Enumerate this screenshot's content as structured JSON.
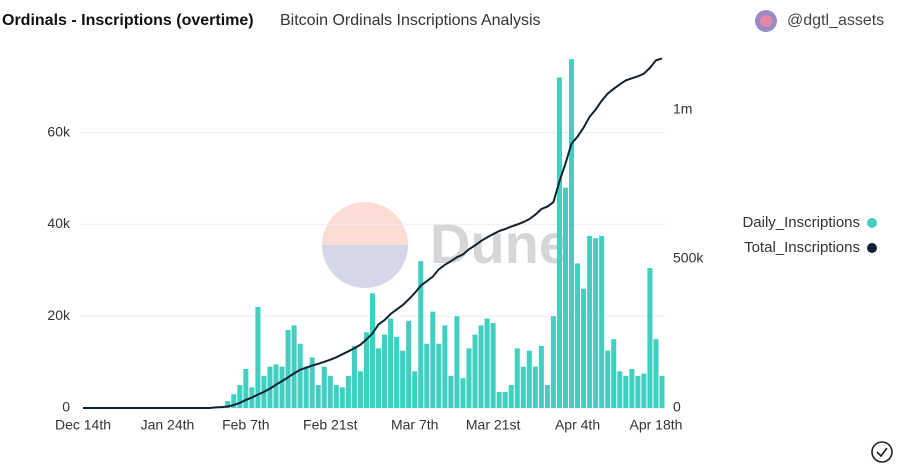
{
  "chart_data": {
    "type": "bar_line",
    "title": "Ordinals - Inscriptions (overtime)",
    "subtitle": "Bitcoin Ordinals Inscriptions Analysis",
    "author": "@dgtl_assets",
    "watermark": "Dune",
    "categories": [
      "Dec 14th",
      null,
      null,
      null,
      null,
      null,
      null,
      null,
      null,
      null,
      null,
      null,
      null,
      null,
      "Jan 24th",
      null,
      null,
      null,
      null,
      null,
      null,
      null,
      null,
      null,
      null,
      null,
      null,
      "Feb 7th",
      null,
      null,
      null,
      null,
      null,
      null,
      null,
      null,
      null,
      null,
      null,
      null,
      null,
      "Feb 21st",
      null,
      null,
      null,
      null,
      null,
      null,
      null,
      null,
      null,
      null,
      null,
      null,
      null,
      "Mar 7th",
      null,
      null,
      null,
      null,
      null,
      null,
      null,
      null,
      null,
      null,
      null,
      null,
      "Mar 21st",
      null,
      null,
      null,
      null,
      null,
      null,
      null,
      null,
      null,
      null,
      null,
      null,
      null,
      "Apr 4th",
      null,
      null,
      null,
      null,
      null,
      null,
      null,
      null,
      null,
      null,
      null,
      null,
      "Apr 18th",
      null
    ],
    "series": [
      {
        "name": "Daily_Inscriptions",
        "color": "#40cfc0",
        "kind": "bar",
        "values": [
          0,
          0,
          0,
          0,
          0,
          0,
          0,
          0,
          0,
          0,
          0,
          0,
          0,
          0,
          0,
          0,
          0,
          0,
          0,
          0,
          0,
          0,
          200,
          400,
          1500,
          3000,
          5000,
          8500,
          4500,
          22000,
          7000,
          9000,
          9500,
          9000,
          17000,
          18000,
          14000,
          9000,
          11000,
          5000,
          9000,
          7000,
          5000,
          4500,
          7000,
          13500,
          8000,
          16500,
          25000,
          13000,
          16000,
          19500,
          15500,
          12500,
          19000,
          8000,
          32000,
          14000,
          21000,
          14000,
          18000,
          7000,
          20000,
          6500,
          13000,
          16000,
          18000,
          19500,
          18500,
          3500,
          3500,
          5000,
          13000,
          9000,
          12500,
          9000,
          13500,
          5000,
          20000,
          72000,
          48000,
          76000,
          31500,
          26000,
          37500,
          37000,
          37500,
          12500,
          15000,
          8000,
          7000,
          8500,
          7000,
          7500,
          30500,
          15000,
          7000
        ]
      },
      {
        "name": "Total_Inscriptions",
        "color": "#0f2233",
        "kind": "line",
        "axis": "y2",
        "values": [
          0,
          0,
          0,
          0,
          0,
          0,
          0,
          0,
          0,
          0,
          0,
          0,
          0,
          0,
          0,
          0,
          0,
          0,
          0,
          0,
          0,
          0,
          2000,
          3000,
          5000,
          10000,
          17000,
          27000,
          35000,
          45000,
          54000,
          65000,
          78000,
          90000,
          103000,
          116000,
          128000,
          135000,
          142000,
          148000,
          155000,
          162000,
          170000,
          180000,
          190000,
          200000,
          212000,
          230000,
          250000,
          280000,
          295000,
          315000,
          330000,
          345000,
          364000,
          385000,
          410000,
          425000,
          440000,
          465000,
          480000,
          492000,
          505000,
          515000,
          532000,
          545000,
          560000,
          572000,
          583000,
          593000,
          600000,
          608000,
          615000,
          623000,
          633000,
          648000,
          667000,
          675000,
          690000,
          760000,
          820000,
          886000,
          910000,
          940000,
          976000,
          1000000,
          1030000,
          1054000,
          1070000,
          1085000,
          1098000,
          1105000,
          1112000,
          1121000,
          1140000,
          1165000,
          1172000
        ]
      }
    ],
    "ylim": [
      0,
      78000
    ],
    "yticks": [
      0,
      {
        "value": 20000,
        "label": "20k"
      },
      {
        "value": 40000,
        "label": "40k"
      },
      {
        "value": 60000,
        "label": "60k"
      }
    ],
    "y2lim": [
      0,
      1200000
    ],
    "y2ticks": [
      0,
      {
        "value": 500000,
        "label": "500k"
      },
      {
        "value": 1000000,
        "label": "1m"
      }
    ],
    "grid": true,
    "legend": "right"
  }
}
